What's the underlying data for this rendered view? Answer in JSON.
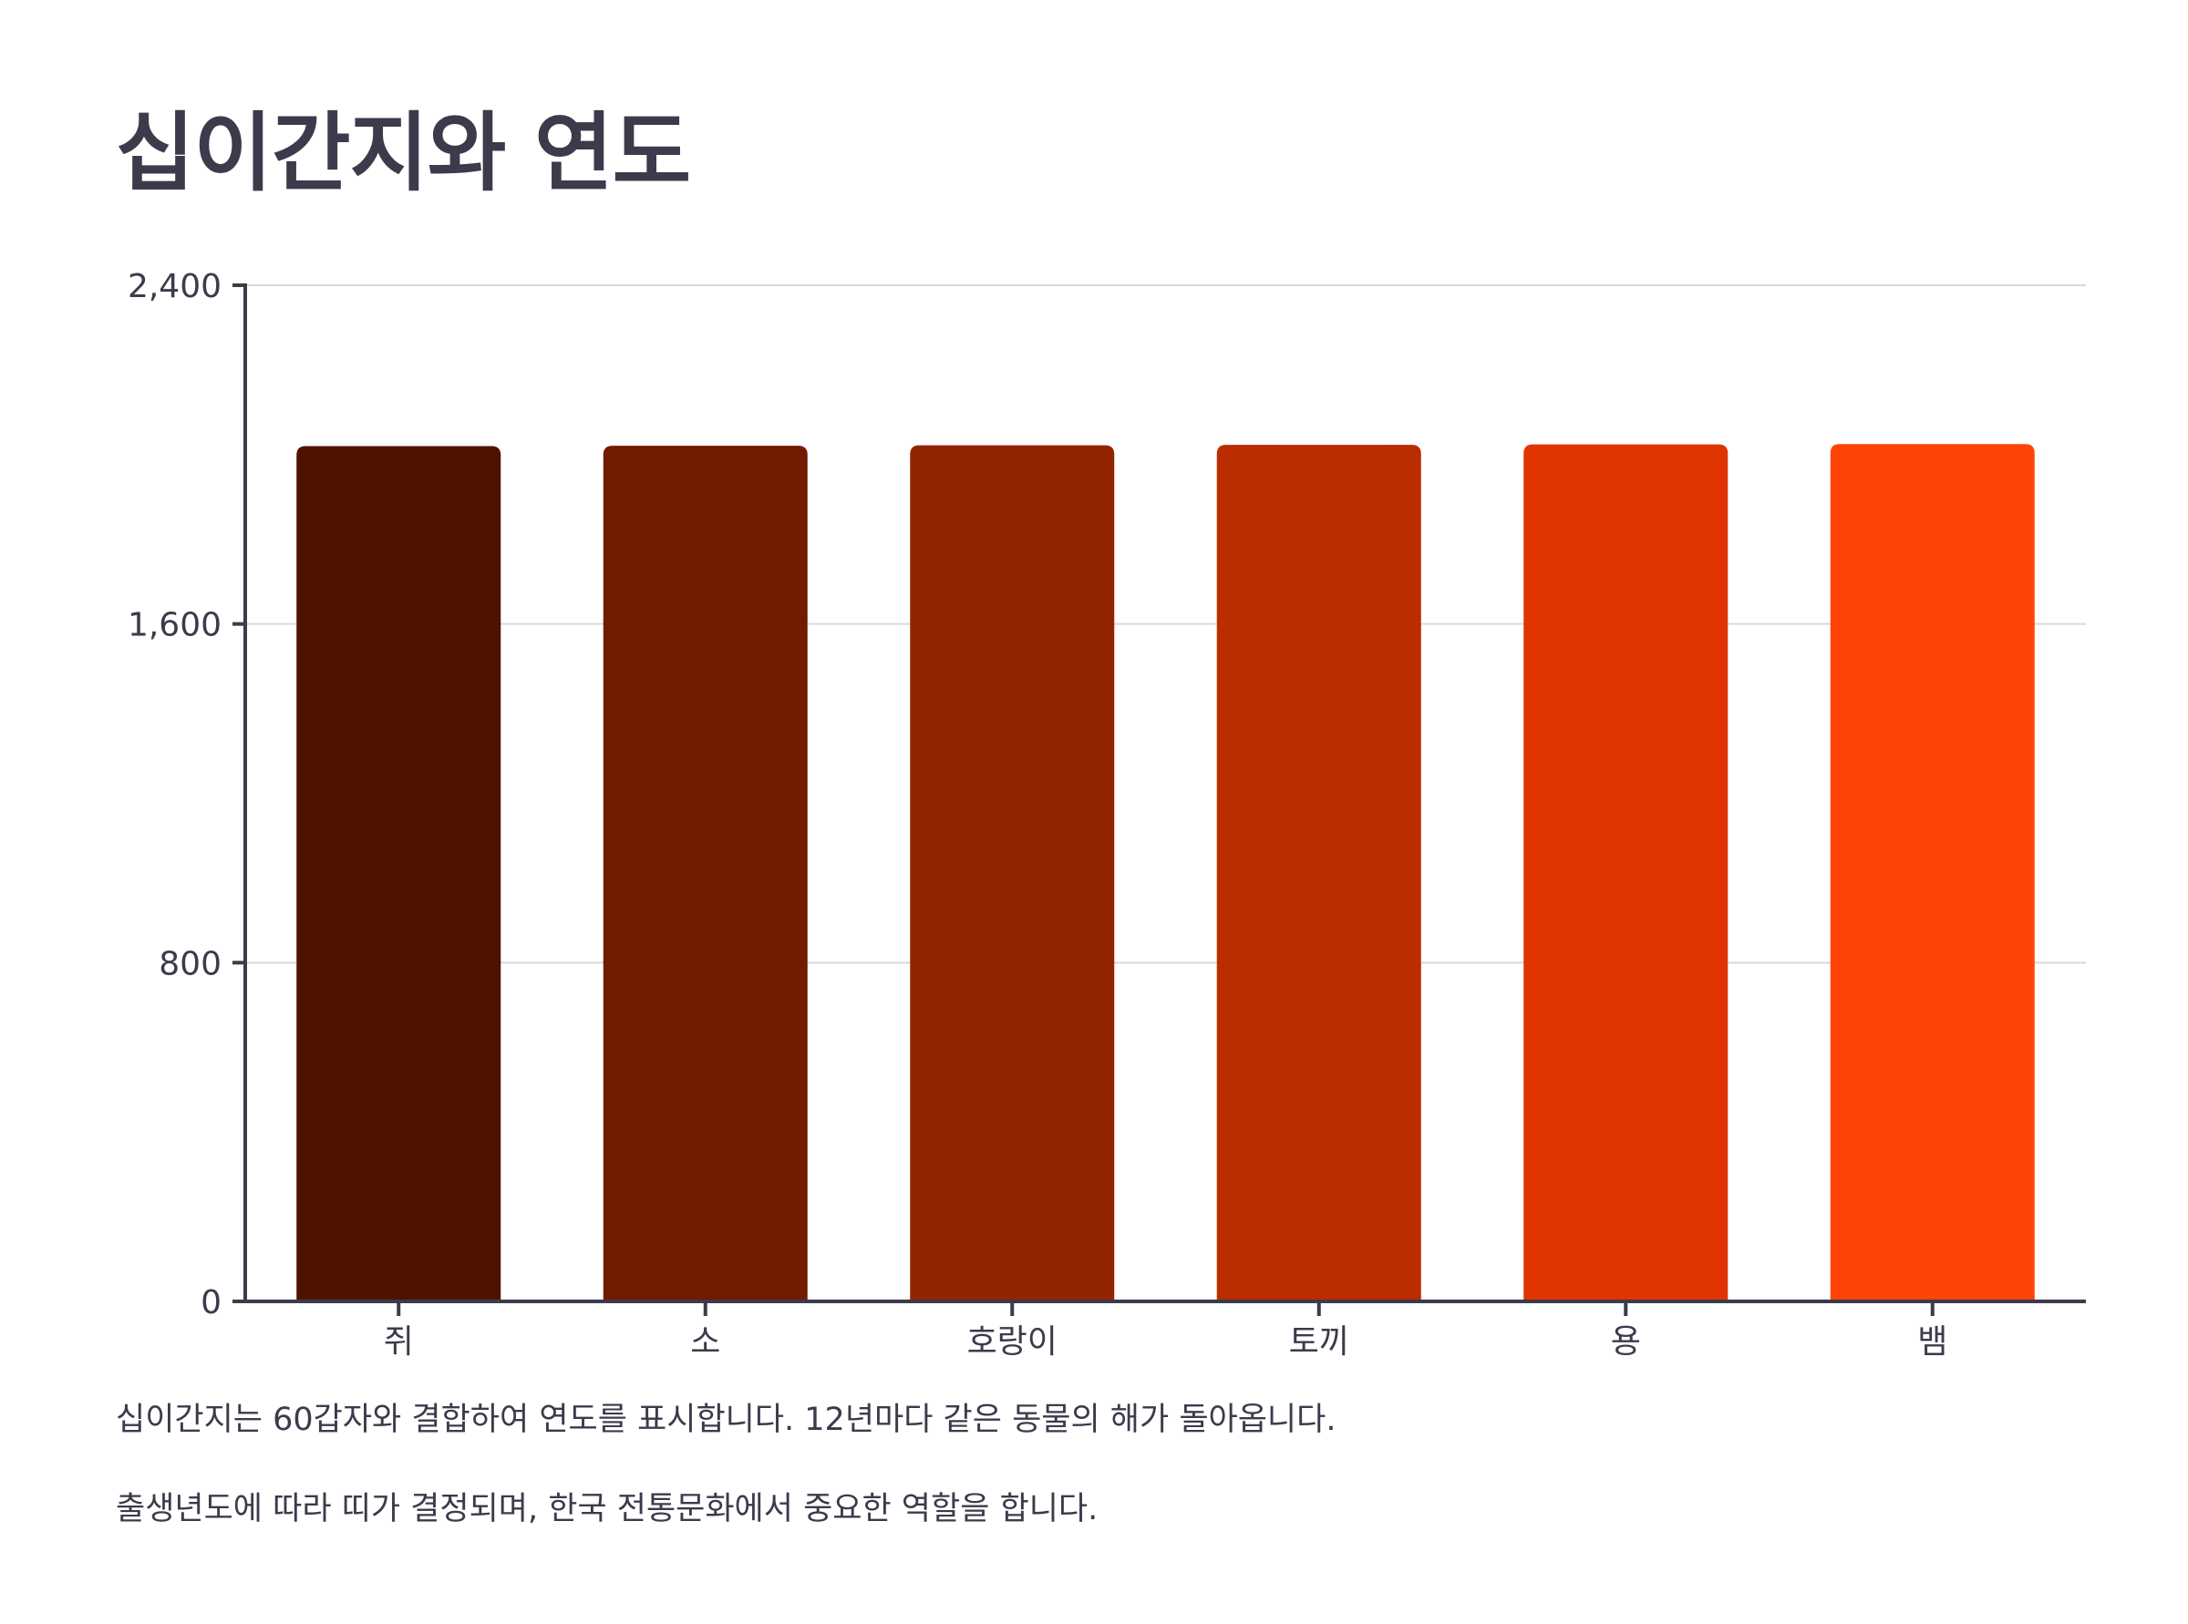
{
  "title": "십이간지와 연도",
  "notes": [
    "십이간지는 60갑자와 결합하여 연도를 표시합니다. 12년마다 같은 동물의 해가 돌아옵니다.",
    "출생년도에 따라 띠가 결정되며, 한국 전통문화에서 중요한 역할을 합니다."
  ],
  "chart_data": {
    "type": "bar",
    "title": "십이간지와 연도",
    "xlabel": "",
    "ylabel": "",
    "categories": [
      "쥐",
      "소",
      "호랑이",
      "토끼",
      "용",
      "뱀"
    ],
    "values": [
      2020,
      2021,
      2022,
      2023,
      2024,
      2025
    ],
    "colors": [
      "#4d1300",
      "#711b00",
      "#932400",
      "#bb2c00",
      "#e03500",
      "#ff440a"
    ],
    "ylim": [
      0,
      2400
    ],
    "yticks": [
      0,
      800,
      1600,
      2400
    ],
    "ytick_labels": [
      "0",
      "800",
      "1,600",
      "2,400"
    ],
    "grid": true,
    "legend": "none"
  }
}
